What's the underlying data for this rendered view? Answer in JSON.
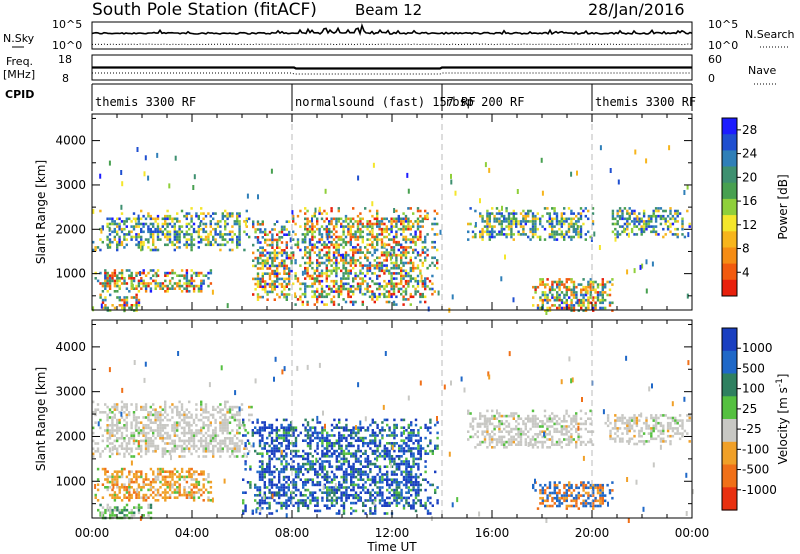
{
  "header": {
    "station": "South Pole Station (fitACF)",
    "beam": "Beam 12",
    "date": "28/Jan/2016"
  },
  "strips": {
    "nsky_label": "N.Sky",
    "nsky_ticks": [
      "10^5",
      "10^0"
    ],
    "nsky_right_ticks": [
      "10^5",
      "10^0"
    ],
    "nsearch_label": "N.Search",
    "freq_label_1": "Freq.",
    "freq_label_2": "[MHz]",
    "freq_ticks": [
      "18",
      "8"
    ],
    "nave_ticks": [
      "60",
      "0"
    ],
    "nave_label": "Nave",
    "cpid_label": "CPID"
  },
  "cpid_segments": [
    {
      "name": "themis 3300 RF",
      "start_h": 0,
      "end_h": 8
    },
    {
      "name": "normalsound (fast) 157 RF",
      "start_h": 8,
      "end_h": 14
    },
    {
      "name": "rbsp 200 RF",
      "start_h": 14,
      "end_h": 20
    },
    {
      "name": "themis 3300 RF",
      "start_h": 20,
      "end_h": 24
    }
  ],
  "chart_data": [
    {
      "type": "heatmap",
      "title": "Power",
      "xlabel": "Time UT",
      "ylabel": "Slant Range [km]",
      "xlim": [
        0,
        24
      ],
      "ylim": [
        180,
        4600
      ],
      "x_ticks": [
        "00:00",
        "04:00",
        "08:00",
        "12:00",
        "16:00",
        "20:00",
        "00:00"
      ],
      "y_ticks": [
        1000,
        2000,
        3000,
        4000
      ],
      "colorbar": {
        "label": "Power [dB]",
        "ticks": [
          4,
          8,
          12,
          16,
          20,
          24,
          28
        ],
        "range": [
          0,
          30
        ],
        "colors": [
          "#1c1cff",
          "#1f4fd0",
          "#2f7fb8",
          "#3e9070",
          "#48a050",
          "#8fcf3a",
          "#f4e62b",
          "#f7b51c",
          "#f58c14",
          "#f25a0e",
          "#e8200c"
        ]
      },
      "echo_regions": [
        {
          "t0": 0.0,
          "t1": 6.4,
          "r0": 1550,
          "r1": 2500,
          "level": "mid",
          "trend": "rising"
        },
        {
          "t0": 0.1,
          "t1": 4.8,
          "r0": 600,
          "r1": 1100,
          "level": "high"
        },
        {
          "t0": 0.2,
          "t1": 2.0,
          "r0": 180,
          "r1": 550,
          "level": "high"
        },
        {
          "t0": 6.4,
          "t1": 8.0,
          "r0": 400,
          "r1": 2200,
          "level": "high"
        },
        {
          "t0": 8.0,
          "t1": 13.8,
          "r0": 300,
          "r1": 2500,
          "level": "high"
        },
        {
          "t0": 15.0,
          "t1": 20.0,
          "r0": 1750,
          "r1": 2500,
          "level": "mid"
        },
        {
          "t0": 17.6,
          "t1": 20.8,
          "r0": 180,
          "r1": 900,
          "level": "high"
        },
        {
          "t0": 20.5,
          "t1": 23.9,
          "r0": 1850,
          "r1": 2500,
          "level": "mid"
        }
      ]
    },
    {
      "type": "heatmap",
      "title": "Velocity",
      "xlabel": "Time UT",
      "ylabel": "Slant Range [km]",
      "xlim": [
        0,
        24
      ],
      "ylim": [
        180,
        4600
      ],
      "x_ticks": [
        "00:00",
        "04:00",
        "08:00",
        "12:00",
        "16:00",
        "20:00",
        "00:00"
      ],
      "y_ticks": [
        1000,
        2000,
        3000,
        4000
      ],
      "colorbar": {
        "label": "Velocity [m s^-1]",
        "ticks": [
          "1000",
          "500",
          "100",
          "25",
          "-25",
          "-100",
          "-500",
          "-1000"
        ],
        "colors": [
          "#1a3fc0",
          "#1f68c8",
          "#2f8060",
          "#55c040",
          "#c8c8c4",
          "#f0a028",
          "#f07018",
          "#e83010"
        ]
      },
      "echo_regions": [
        {
          "t0": 0.0,
          "t1": 6.4,
          "r0": 1550,
          "r1": 2800,
          "level": "ground"
        },
        {
          "t0": 0.1,
          "t1": 4.8,
          "r0": 600,
          "r1": 1300,
          "level": "neg"
        },
        {
          "t0": 0.2,
          "t1": 2.5,
          "r0": 180,
          "r1": 500,
          "level": "pos_small"
        },
        {
          "t0": 6.0,
          "t1": 13.8,
          "r0": 300,
          "r1": 2400,
          "level": "pos_large"
        },
        {
          "t0": 15.0,
          "t1": 20.0,
          "r0": 1750,
          "r1": 2600,
          "level": "ground"
        },
        {
          "t0": 17.6,
          "t1": 20.8,
          "r0": 400,
          "r1": 1000,
          "level": "mixed"
        },
        {
          "t0": 20.5,
          "t1": 23.9,
          "r0": 1850,
          "r1": 2500,
          "level": "ground"
        }
      ]
    }
  ]
}
